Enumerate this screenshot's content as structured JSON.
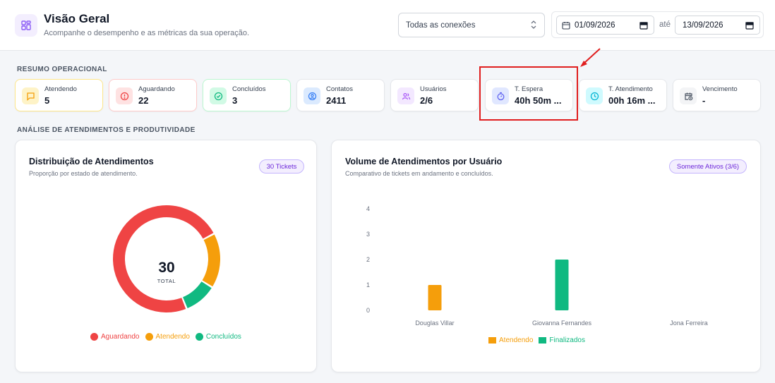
{
  "header": {
    "title": "Visão Geral",
    "subtitle": "Acompanhe o desempenho e as métricas da sua operação.",
    "icon": "grid-icon"
  },
  "filters": {
    "connection": "Todas as conexões",
    "date_from": "01/09/2026",
    "date_sep": "até",
    "date_to": "13/09/2026"
  },
  "summary": {
    "label": "RESUMO OPERACIONAL",
    "cards": [
      {
        "label": "Atendendo",
        "value": "5",
        "icon": "message-icon",
        "color": "#f59e0b"
      },
      {
        "label": "Aguardando",
        "value": "22",
        "icon": "alert-circle-icon",
        "color": "#ef4444"
      },
      {
        "label": "Concluídos",
        "value": "3",
        "icon": "check-circle-icon",
        "color": "#10b981"
      },
      {
        "label": "Contatos",
        "value": "2411",
        "icon": "user-circle-icon",
        "color": "#3b82f6"
      },
      {
        "label": "Usuários",
        "value": "2/6",
        "icon": "users-icon",
        "color": "#a855f7"
      },
      {
        "label": "T. Espera",
        "value": "40h 50m ...",
        "icon": "timer-icon",
        "color": "#6366f1"
      },
      {
        "label": "T. Atendimento",
        "value": "00h 16m ...",
        "icon": "clock-icon",
        "color": "#06b6d4"
      },
      {
        "label": "Vencimento",
        "value": "-",
        "icon": "calendar-clock-icon",
        "color": "#6b7280"
      }
    ]
  },
  "analysis": {
    "label": "ANÁLISE DE ATENDIMENTOS E PRODUTIVIDADE"
  },
  "distribution": {
    "title": "Distribuição de Atendimentos",
    "subtitle": "Proporção por estado de atendimento.",
    "badge": "30 Tickets",
    "total": "30",
    "total_label": "TOTAL"
  },
  "volume": {
    "title": "Volume de Atendimentos por Usuário",
    "subtitle": "Comparativo de tickets em andamento e concluídos.",
    "badge": "Somente Ativos (3/6)"
  },
  "chart_data": [
    {
      "type": "pie",
      "categories": [
        "Aguardando",
        "Atendendo",
        "Concluídos"
      ],
      "values": [
        22,
        5,
        3
      ],
      "colors": [
        "#ef4444",
        "#f59e0b",
        "#10b981"
      ],
      "title": "Distribuição de Atendimentos",
      "legend": "bottom"
    },
    {
      "type": "bar",
      "categories": [
        "Douglas Villar",
        "Giovanna Fernandes",
        "Jona Ferreira"
      ],
      "series": [
        {
          "name": "Atendendo",
          "values": [
            1,
            0,
            0
          ],
          "color": "#f59e0b"
        },
        {
          "name": "Finalizados",
          "values": [
            0,
            2,
            0
          ],
          "color": "#10b981"
        }
      ],
      "yticks": [
        "0",
        "1",
        "2",
        "3",
        "4"
      ],
      "ylim": [
        0,
        4
      ],
      "title": "Volume de Atendimentos por Usuário",
      "legend": "bottom"
    }
  ]
}
